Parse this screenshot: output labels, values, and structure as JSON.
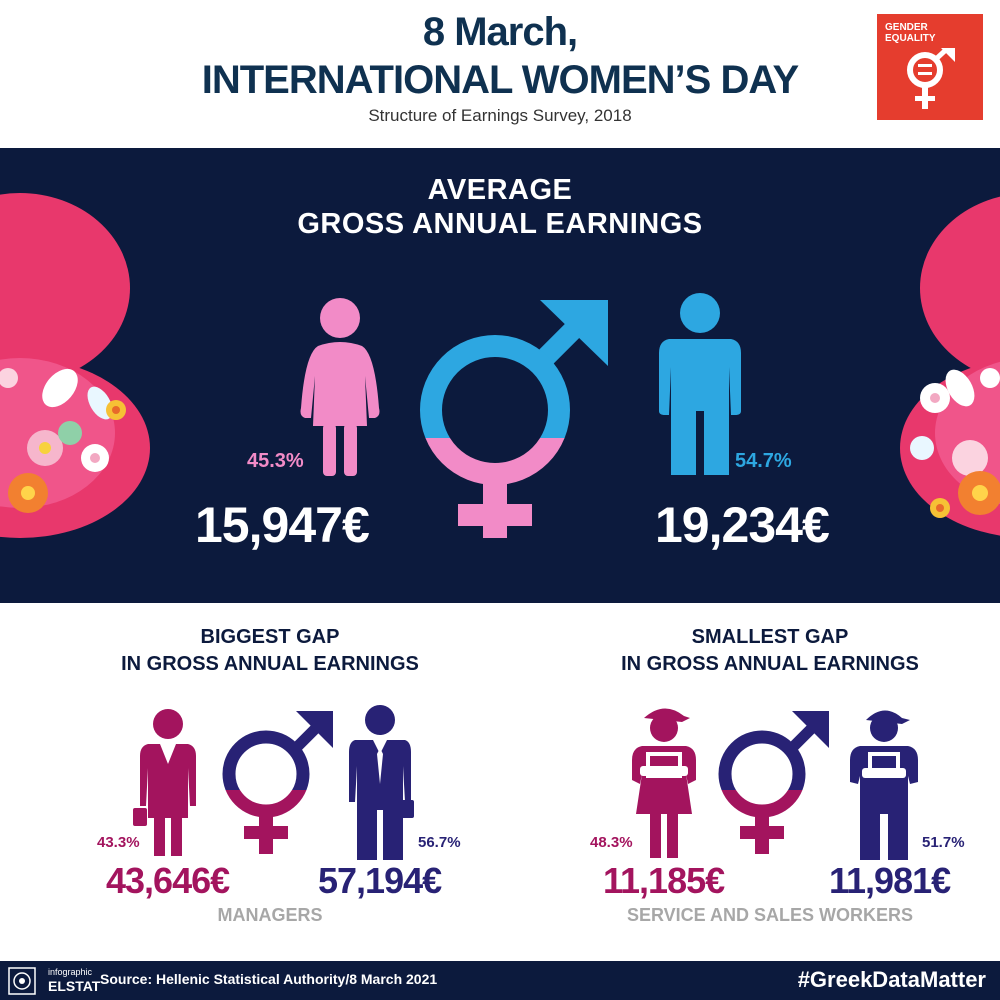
{
  "header": {
    "title_line1": "8 March,",
    "title_line2": "INTERNATIONAL WOMEN’S DAY",
    "subtitle": "Structure of Earnings Survey, 2018",
    "badge_line1": "GENDER",
    "badge_line2": "EQUALITY"
  },
  "chart_data": [
    {
      "type": "table",
      "title_line1": "AVERAGE",
      "title_line2": "GROSS ANNUAL EARNINGS",
      "female": {
        "share": "45.3%",
        "earnings": "15,947",
        "share_value": 45.3
      },
      "male": {
        "share": "54.7%",
        "earnings": "19,234",
        "share_value": 54.7
      }
    },
    {
      "type": "table",
      "title_line1": "BIGGEST GAP",
      "title_line2": "IN GROSS ANNUAL EARNINGS",
      "occupation": "MANAGERS",
      "female": {
        "share": "43.3%",
        "earnings": "43,646",
        "share_value": 43.3
      },
      "male": {
        "share": "56.7%",
        "earnings": "57,194",
        "share_value": 56.7
      }
    },
    {
      "type": "table",
      "title_line1": "SMALLEST GAP",
      "title_line2": "IN GROSS ANNUAL EARNINGS",
      "occupation": "SERVICE AND SALES WORKERS",
      "female": {
        "share": "48.3%",
        "earnings": "11,185",
        "share_value": 48.3
      },
      "male": {
        "share": "51.7%",
        "earnings": "11,981",
        "share_value": 51.7
      }
    }
  ],
  "currency": "€",
  "footer": {
    "logo_small": "infographic",
    "logo_big": "ELSTAT",
    "source": "Source: Hellenic Statistical Authority/8 March 2021",
    "hashtag": "#GreekDataMatter"
  },
  "colors": {
    "navy": "#0c1a3d",
    "title_navy": "#0f3150",
    "pink": "#f28bc7",
    "blue": "#2da7e1",
    "maroon": "#a3145e",
    "indigo": "#282275",
    "sdg_red": "#e53d2e",
    "deco_pink": "#e8386c"
  }
}
